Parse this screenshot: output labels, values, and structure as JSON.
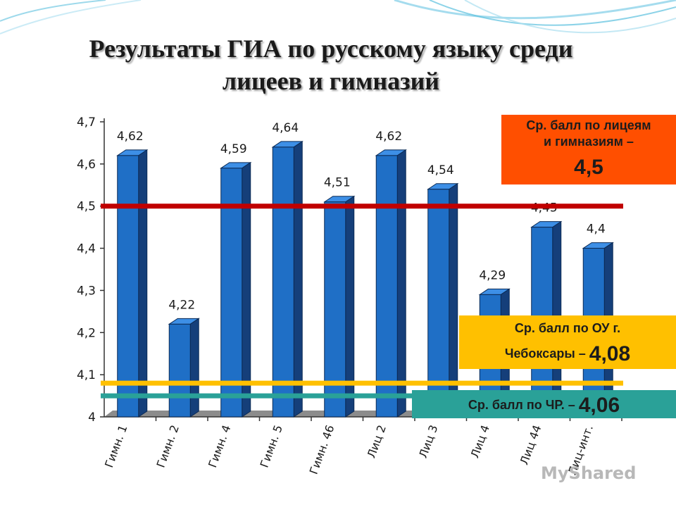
{
  "title": [
    "Результаты ГИА по русскому языку среди",
    "лицеев и гимназий"
  ],
  "colors": {
    "bar_front": "#1f6fc6",
    "bar_side": "#153f7a",
    "bar_top": "#3d8fe6",
    "floor": "#8c8c8c",
    "line_lyceums": "#c00000",
    "line_city": "#ffc000",
    "line_republic": "#2aa198",
    "callout_lyceums": "#ff4f00",
    "callout_city": "#ffc000",
    "callout_republic": "#2aa198",
    "waves": "#5bc0de"
  },
  "callouts": {
    "lyceums": {
      "line1": "Ср. балл по лицеям",
      "line2": "и гимназиям –",
      "value": "4,5"
    },
    "city": {
      "line1": "Ср. балл по ОУ г.",
      "line2": "Чебоксары –",
      "value": "4,08"
    },
    "republic": {
      "line1": "Ср. балл по ЧР. –",
      "value": "4,06"
    }
  },
  "watermark": "MyShared",
  "chart_data": {
    "type": "bar",
    "categories": [
      "Гимн. 1",
      "Гимн. 2",
      "Гимн. 4",
      "Гимн. 5",
      "Гимн. 46",
      "Лиц 2",
      "Лиц 3",
      "Лиц 4",
      "Лиц 44",
      "Лиц-инт."
    ],
    "values": [
      4.62,
      4.22,
      4.59,
      4.64,
      4.51,
      4.62,
      4.54,
      4.29,
      4.45,
      4.4
    ],
    "data_labels": [
      "4,62",
      "4,22",
      "4,59",
      "4,64",
      "4,51",
      "4,62",
      "4,54",
      "4,29",
      "4,45",
      "4,4"
    ],
    "ylim": [
      4,
      4.7
    ],
    "yticks": [
      4,
      4.1,
      4.2,
      4.3,
      4.4,
      4.5,
      4.6,
      4.7
    ],
    "ytick_labels": [
      "4",
      "4,1",
      "4,2",
      "4,3",
      "4,4",
      "4,5",
      "4,6",
      "4,7"
    ],
    "grid": false,
    "reference_lines": [
      {
        "value": 4.5,
        "key": "lyceums"
      },
      {
        "value": 4.08,
        "key": "city"
      },
      {
        "value": 4.06,
        "key": "republic"
      }
    ]
  }
}
